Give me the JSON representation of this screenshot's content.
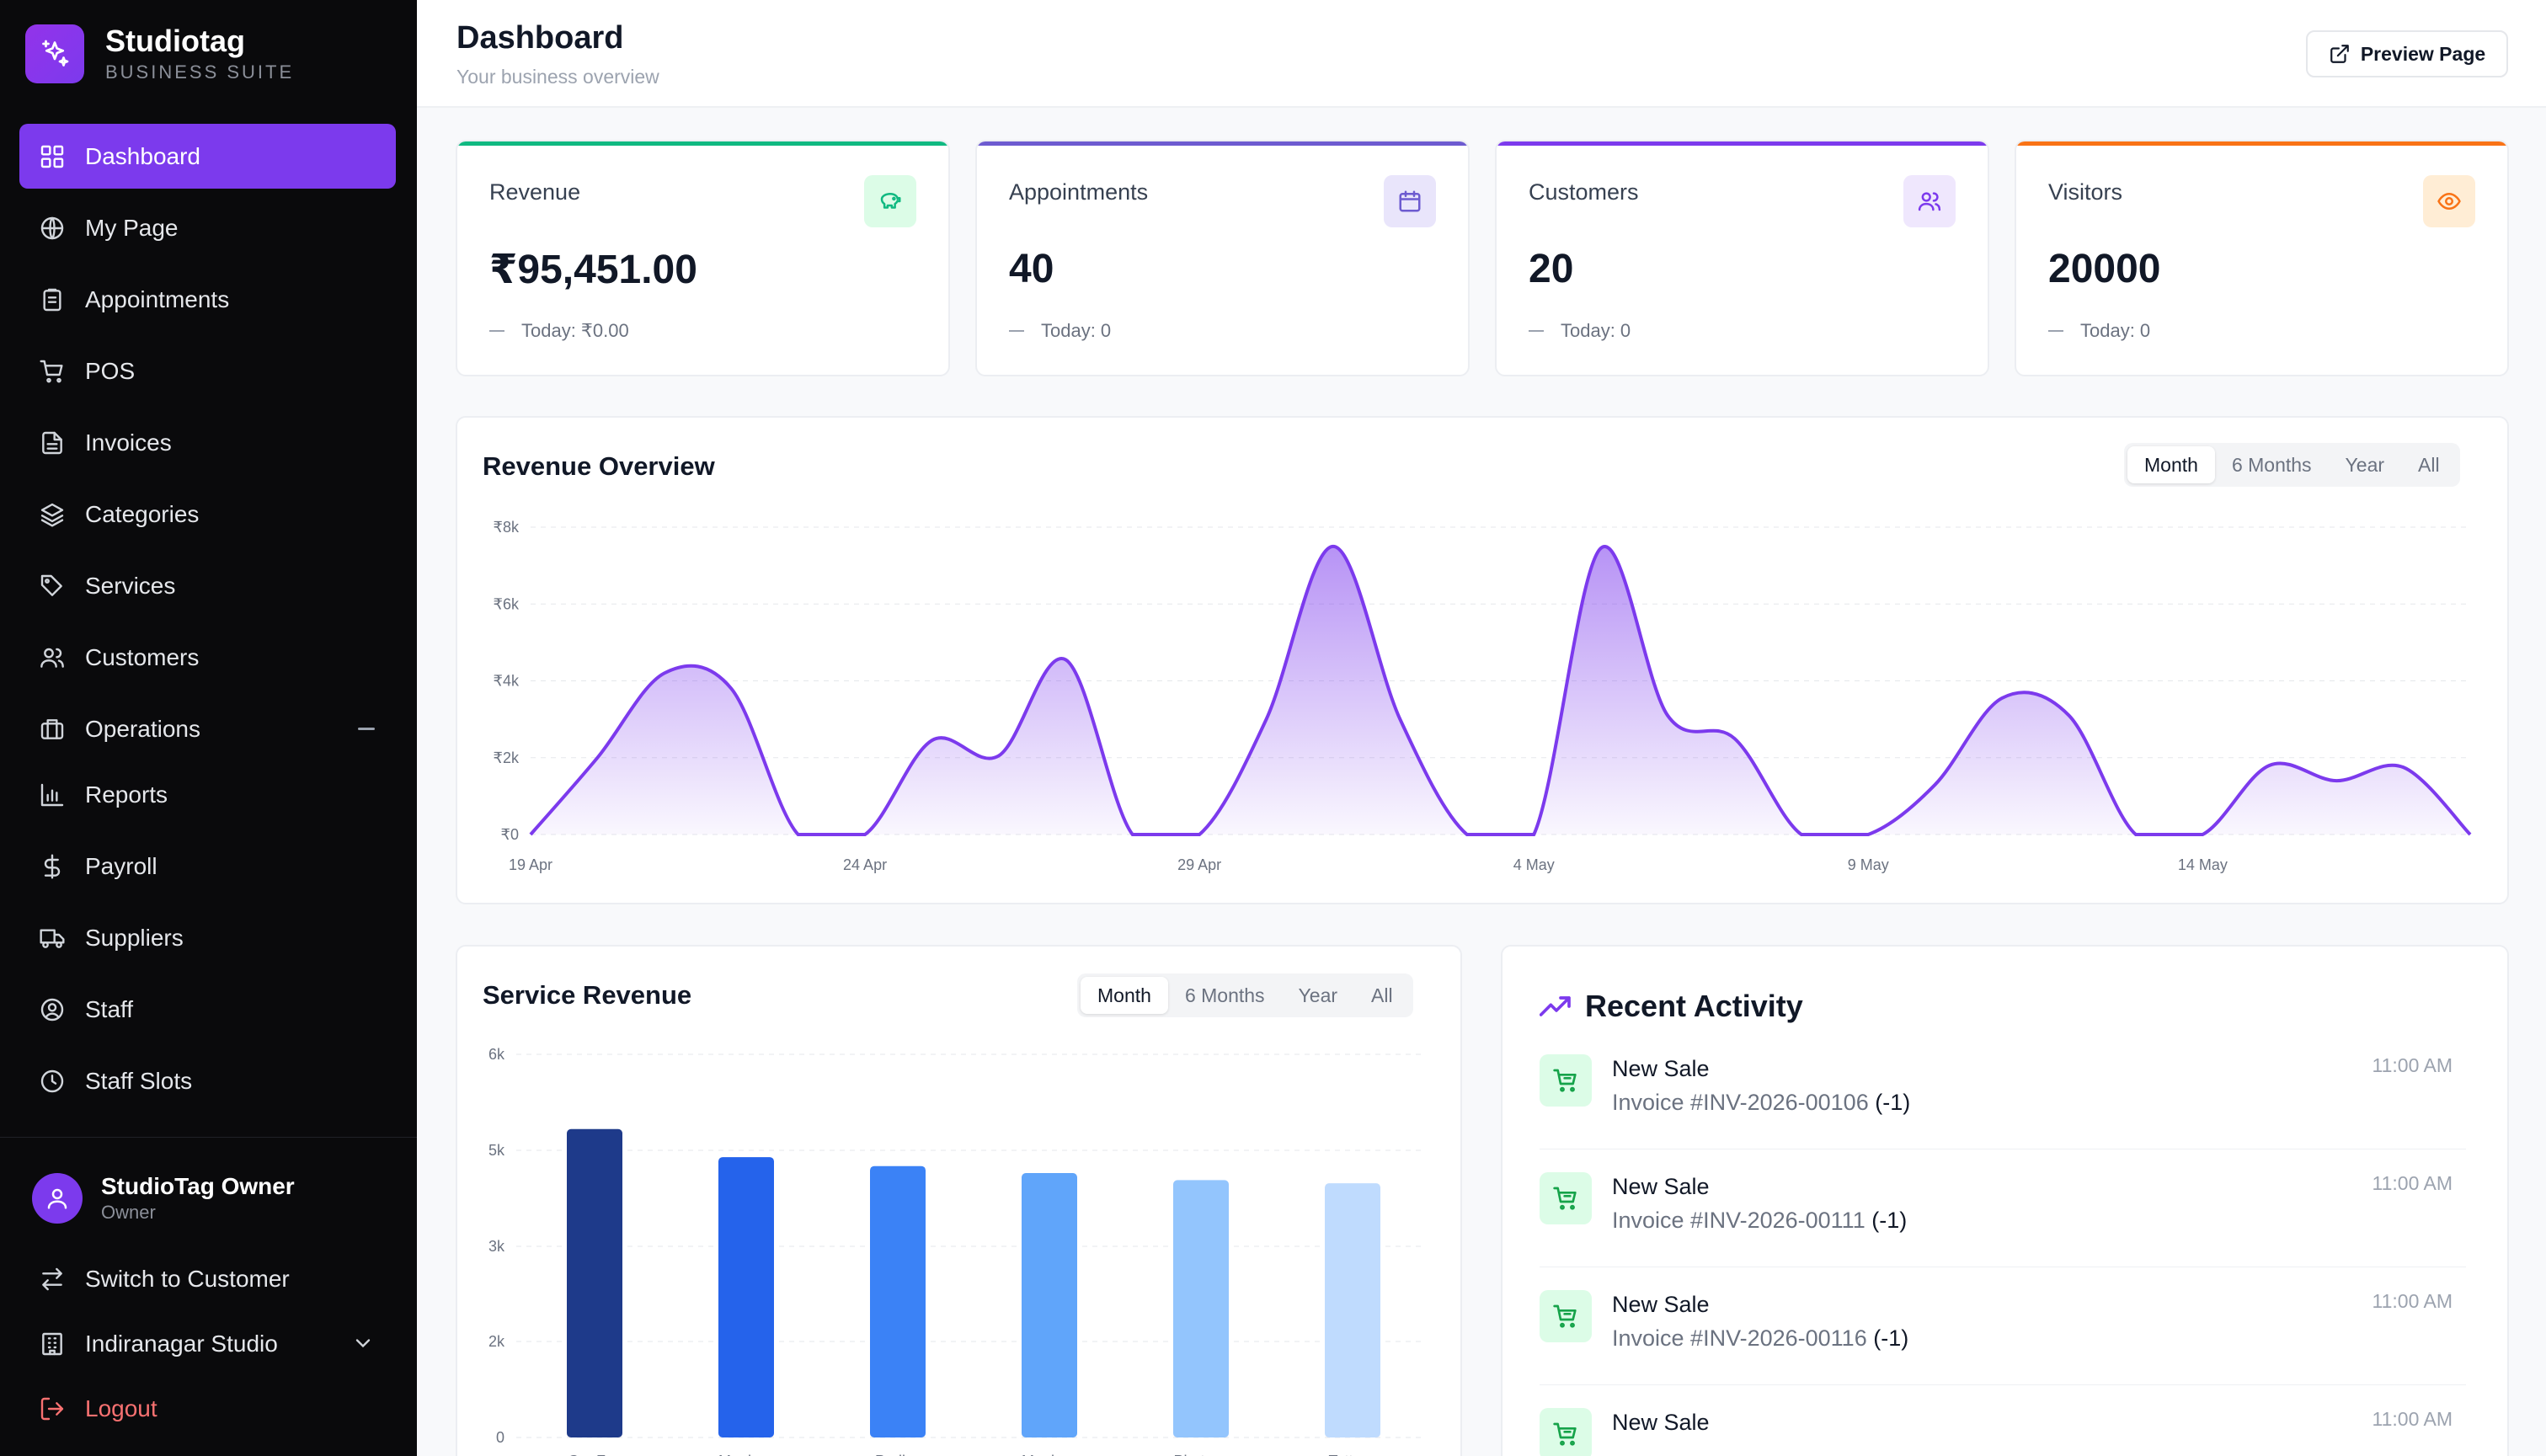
{
  "brand": {
    "name": "Studiotag",
    "subtitle": "BUSINESS SUITE"
  },
  "nav": [
    {
      "label": "Dashboard",
      "icon": "grid-icon",
      "active": true
    },
    {
      "label": "My Page",
      "icon": "globe-icon"
    },
    {
      "label": "Appointments",
      "icon": "clipboard-icon"
    },
    {
      "label": "POS",
      "icon": "cart-icon"
    },
    {
      "label": "Invoices",
      "icon": "file-icon"
    },
    {
      "label": "Categories",
      "icon": "layers-icon"
    },
    {
      "label": "Services",
      "icon": "tag-icon"
    },
    {
      "label": "Customers",
      "icon": "users-icon"
    },
    {
      "label": "Operations",
      "icon": "briefcase-icon"
    },
    {
      "label": "Reports",
      "icon": "bar-chart-icon"
    },
    {
      "label": "Payroll",
      "icon": "dollar-icon"
    },
    {
      "label": "Suppliers",
      "icon": "truck-icon"
    },
    {
      "label": "Staff",
      "icon": "user-circle-icon"
    },
    {
      "label": "Staff Slots",
      "icon": "clock-icon"
    }
  ],
  "user": {
    "name": "StudioTag Owner",
    "role": "Owner"
  },
  "footer_nav": {
    "switch_label": "Switch to Customer",
    "studio_label": "Indiranagar Studio",
    "logout_label": "Logout"
  },
  "header": {
    "title": "Dashboard",
    "subtitle": "Your business overview",
    "preview_label": "Preview Page"
  },
  "stats": [
    {
      "label": "Revenue",
      "value": "₹95,451.00",
      "today": "Today: ₹0.00",
      "icon": "piggy-bank-icon",
      "color": "#10b981",
      "bg": "#dcfce7"
    },
    {
      "label": "Appointments",
      "value": "40",
      "today": "Today: 0",
      "icon": "calendar-icon",
      "color": "#6d5bd0",
      "bg": "#e9e5fb"
    },
    {
      "label": "Customers",
      "value": "20",
      "today": "Today: 0",
      "icon": "users-icon",
      "color": "#7c3aed",
      "bg": "#efe7fd"
    },
    {
      "label": "Visitors",
      "value": "20000",
      "today": "Today: 0",
      "icon": "eye-icon",
      "color": "#f97316",
      "bg": "#ffedd5"
    }
  ],
  "revenue_overview": {
    "title": "Revenue Overview",
    "ranges": [
      "Month",
      "6 Months",
      "Year",
      "All"
    ],
    "selected_range": "Month"
  },
  "service_revenue": {
    "title": "Service Revenue",
    "ranges": [
      "Month",
      "6 Months",
      "Year",
      "All"
    ],
    "selected_range": "Month"
  },
  "activity": {
    "title": "Recent Activity",
    "items": [
      {
        "name": "New Sale",
        "detail": "Invoice #INV-2026-00106",
        "qty": "(-1)",
        "time": "11:00 AM"
      },
      {
        "name": "New Sale",
        "detail": "Invoice #INV-2026-00111",
        "qty": "(-1)",
        "time": "11:00 AM"
      },
      {
        "name": "New Sale",
        "detail": "Invoice #INV-2026-00116",
        "qty": "(-1)",
        "time": "11:00 AM"
      },
      {
        "name": "New Sale",
        "detail": "",
        "qty": "",
        "time": "11:00 AM"
      }
    ]
  },
  "colors": {
    "accent": "#7c3aed",
    "sidebar_bg": "#0a0a0c"
  },
  "chart_data": [
    {
      "type": "area",
      "title": "Revenue Overview",
      "x": [
        "19 Apr",
        "20 Apr",
        "21 Apr",
        "22 Apr",
        "23 Apr",
        "24 Apr",
        "25 Apr",
        "26 Apr",
        "27 Apr",
        "28 Apr",
        "29 Apr",
        "30 Apr",
        "1 May",
        "2 May",
        "3 May",
        "4 May",
        "5 May",
        "6 May",
        "7 May",
        "8 May",
        "9 May",
        "10 May",
        "11 May",
        "12 May",
        "13 May",
        "14 May",
        "15 May",
        "16 May",
        "17 May",
        "18 May"
      ],
      "x_tick_labels": [
        "19 Apr",
        "24 Apr",
        "29 Apr",
        "4 May",
        "9 May",
        "14 May"
      ],
      "series": [
        {
          "values": [
            0,
            2000,
            4200,
            3800,
            0,
            0,
            2450,
            2050,
            4550,
            0,
            0,
            3000,
            7500,
            3000,
            0,
            0,
            7450,
            3100,
            2500,
            0,
            0,
            1300,
            3550,
            3100,
            0,
            0,
            1800,
            1400,
            1750,
            0
          ]
        }
      ],
      "y_tick_labels": [
        "₹0",
        "₹2k",
        "₹4k",
        "₹6k",
        "₹8k"
      ],
      "ylim": [
        0,
        8000
      ],
      "grid": true
    },
    {
      "type": "bar",
      "title": "Service Revenue",
      "categories": [
        "Ser F…",
        "Manic…",
        "Pedi…",
        "Manic…",
        "Photo…",
        "Tatto…"
      ],
      "values": [
        4830,
        4390,
        4250,
        4140,
        4030,
        3980
      ],
      "y_tick_labels": [
        "0",
        "2k",
        "3k",
        "5k",
        "6k"
      ],
      "colors": [
        "#1e3a8a",
        "#2563eb",
        "#3b82f6",
        "#60a5fa",
        "#93c5fd",
        "#bfdbfe"
      ],
      "grid": true
    }
  ]
}
